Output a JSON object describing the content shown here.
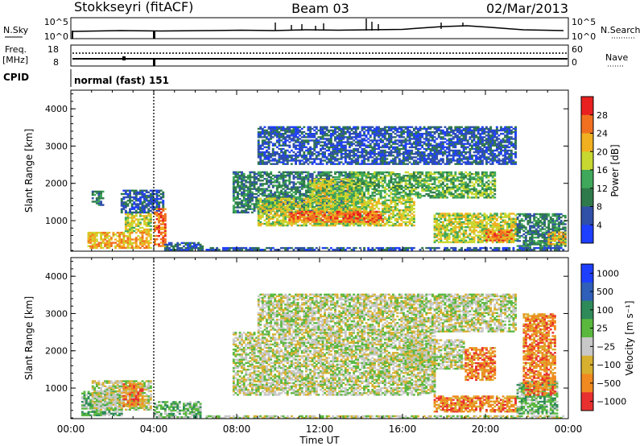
{
  "header": {
    "station": "Stokkseyri (fitACF)",
    "beam": "Beam 03",
    "date": "02/Mar/2013"
  },
  "status_panels": {
    "nsky": {
      "left_label": "N.Sky",
      "left_ticks": [
        "10^5",
        "10^0"
      ],
      "right_label": "N.Search",
      "right_ticks": [
        "10^5",
        "10^0"
      ]
    },
    "freq": {
      "left_label_1": "Freq.",
      "left_label_2": "[MHz]",
      "left_ticks": [
        "18",
        "8"
      ],
      "right_label": "Nave",
      "right_ticks": [
        "60",
        "0"
      ]
    },
    "cpid": {
      "label": "CPID",
      "value": "normal (fast) 151"
    }
  },
  "colors": {
    "power": [
      "#1f3fff",
      "#3050a8",
      "#2f7a4a",
      "#3fa85a",
      "#c8d830",
      "#f0b020",
      "#f07020",
      "#e82020"
    ],
    "velocity": [
      "#1e3fff",
      "#2f5fb8",
      "#2f8a5a",
      "#5ab83f",
      "#c8c8c8",
      "#d8b030",
      "#f08a20",
      "#e83030"
    ]
  },
  "chart_data": [
    {
      "type": "heatmap",
      "name": "power",
      "ylabel": "Slant Range [km]",
      "xlabel": "",
      "ylim": [
        180,
        4500
      ],
      "yticks": [
        "1000",
        "2000",
        "3000",
        "4000"
      ],
      "xlim_hours": [
        0,
        24
      ],
      "xticks": [
        "00:00",
        "04:00",
        "08:00",
        "12:00",
        "16:00",
        "20:00",
        "00:00"
      ],
      "colorbar": {
        "label": "Power [dB]",
        "ticks": [
          "4",
          "8",
          "12",
          "16",
          "20",
          "24",
          "28"
        ],
        "range": [
          0,
          32
        ]
      },
      "regions": [
        {
          "t": [
            0.8,
            3.9
          ],
          "r": [
            250,
            700
          ],
          "level": 5
        },
        {
          "t": [
            2.6,
            3.9
          ],
          "r": [
            700,
            1200
          ],
          "level": 4
        },
        {
          "t": [
            1.0,
            1.6
          ],
          "r": [
            1400,
            1800
          ],
          "level": 2
        },
        {
          "t": [
            2.4,
            4.4
          ],
          "r": [
            1200,
            1800
          ],
          "level": 1
        },
        {
          "t": [
            4.0,
            4.5
          ],
          "r": [
            300,
            1300
          ],
          "level": 6
        },
        {
          "t": [
            4.5,
            6.3
          ],
          "r": [
            200,
            400
          ],
          "level": 1
        },
        {
          "t": [
            6.5,
            23.8
          ],
          "r": [
            200,
            280
          ],
          "level": 1
        },
        {
          "t": [
            7.8,
            13.5
          ],
          "r": [
            1200,
            2300
          ],
          "level": 2
        },
        {
          "t": [
            9.0,
            16.5
          ],
          "r": [
            850,
            1600
          ],
          "level": 4
        },
        {
          "t": [
            10.5,
            15.0
          ],
          "r": [
            950,
            1250
          ],
          "level": 6
        },
        {
          "t": [
            11.5,
            14.0
          ],
          "r": [
            1500,
            2100
          ],
          "level": 4
        },
        {
          "t": [
            13.5,
            20.5
          ],
          "r": [
            1600,
            2300
          ],
          "level": 3
        },
        {
          "t": [
            9.0,
            21.5
          ],
          "r": [
            2500,
            3500
          ],
          "level": 1
        },
        {
          "t": [
            17.5,
            21.5
          ],
          "r": [
            400,
            1200
          ],
          "level": 4
        },
        {
          "t": [
            20.0,
            21.3
          ],
          "r": [
            450,
            750
          ],
          "level": 6
        },
        {
          "t": [
            21.5,
            23.9
          ],
          "r": [
            300,
            1200
          ],
          "level": 2
        },
        {
          "t": [
            23.0,
            23.9
          ],
          "r": [
            350,
            700
          ],
          "level": 5
        }
      ]
    },
    {
      "type": "heatmap",
      "name": "velocity",
      "ylabel": "Slant Range [km]",
      "xlabel": "Time UT",
      "ylim": [
        180,
        4500
      ],
      "yticks": [
        "1000",
        "2000",
        "3000",
        "4000"
      ],
      "xlim_hours": [
        0,
        24
      ],
      "xticks": [
        "00:00",
        "04:00",
        "08:00",
        "12:00",
        "16:00",
        "20:00",
        "00:00"
      ],
      "colorbar": {
        "label": "Velocity [m s⁻¹]",
        "ticks": [
          "1000",
          "500",
          "100",
          "25",
          "−25",
          "−100",
          "−500",
          "−1000"
        ]
      },
      "regions": [
        {
          "t": [
            0.5,
            2.5
          ],
          "r": [
            250,
            900
          ],
          "level": 3
        },
        {
          "t": [
            1.0,
            3.9
          ],
          "r": [
            400,
            1200
          ],
          "level": 4
        },
        {
          "t": [
            2.5,
            3.5
          ],
          "r": [
            500,
            1100
          ],
          "level": 6
        },
        {
          "t": [
            4.0,
            6.2
          ],
          "r": [
            200,
            650
          ],
          "level": 3
        },
        {
          "t": [
            6.5,
            23.8
          ],
          "r": [
            180,
            250
          ],
          "level": 4
        },
        {
          "t": [
            7.8,
            17.5
          ],
          "r": [
            800,
            2500
          ],
          "level": 4
        },
        {
          "t": [
            9.0,
            21.5
          ],
          "r": [
            2500,
            3500
          ],
          "level": 4
        },
        {
          "t": [
            16.0,
            19.0
          ],
          "r": [
            1500,
            2300
          ],
          "level": 4
        },
        {
          "t": [
            17.5,
            21.5
          ],
          "r": [
            350,
            800
          ],
          "level": 6
        },
        {
          "t": [
            19.0,
            20.5
          ],
          "r": [
            1200,
            2100
          ],
          "level": 6
        },
        {
          "t": [
            21.5,
            23.5
          ],
          "r": [
            300,
            1200
          ],
          "level": 3
        },
        {
          "t": [
            21.8,
            23.4
          ],
          "r": [
            800,
            3000
          ],
          "level": 6
        }
      ]
    }
  ]
}
